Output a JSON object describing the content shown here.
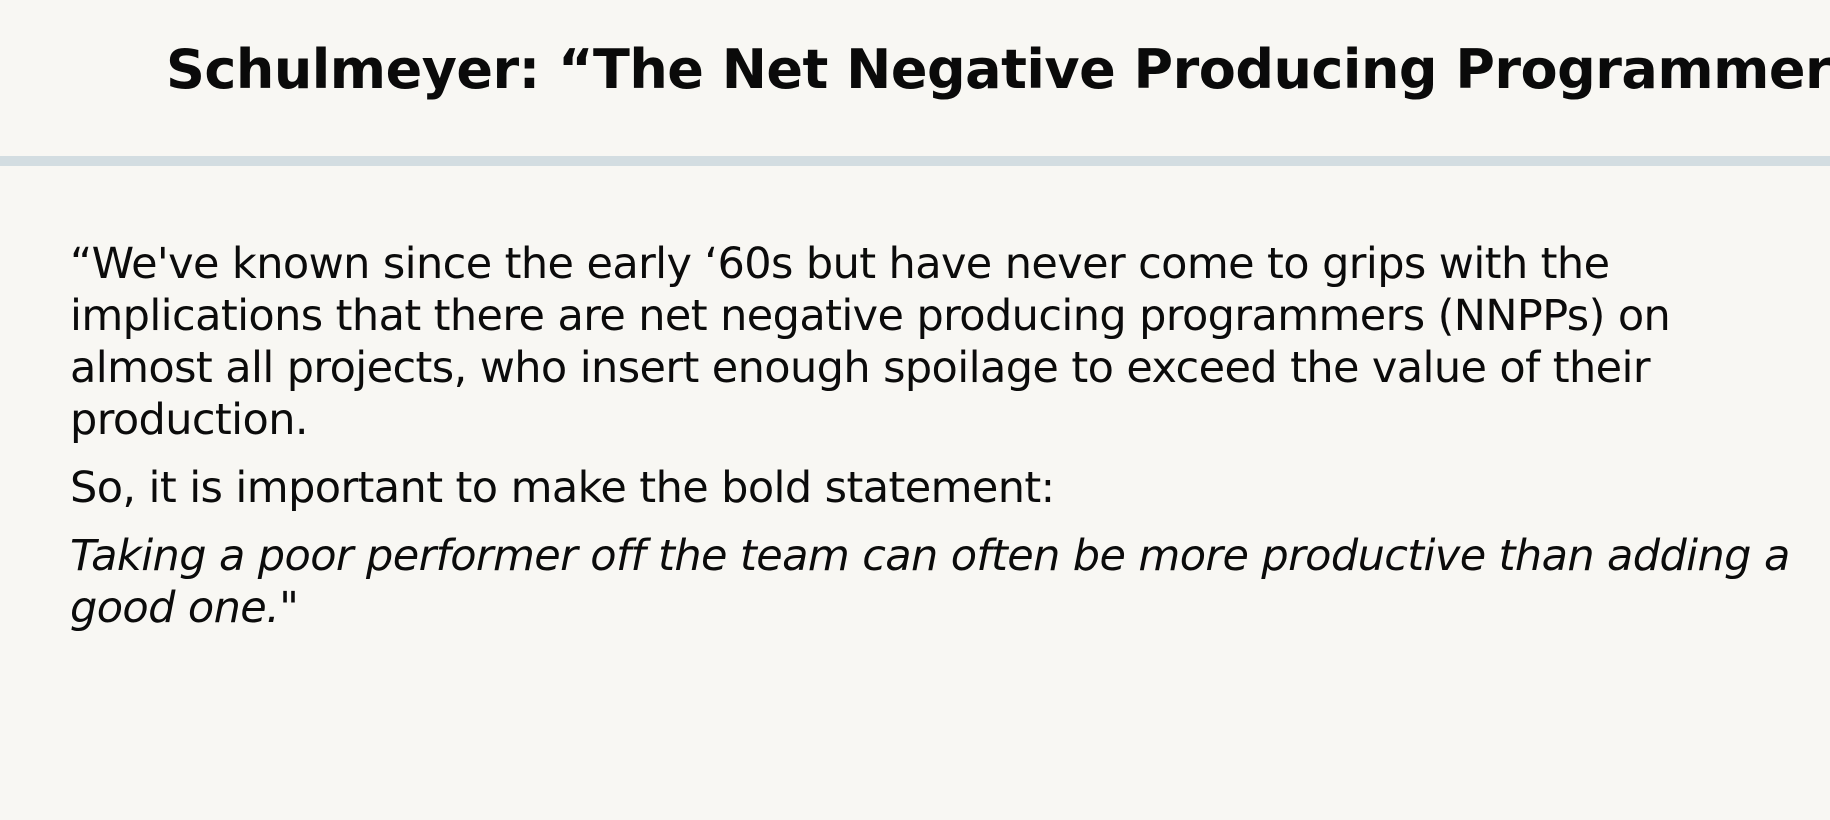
{
  "slide": {
    "title": "Schulmeyer: “The Net Negative Producing Programmer”",
    "paragraphs": [
      "“We've known since the early ‘60s but have never come to grips with the implications that there are net negative producing programmers (NNPPs) on almost all projects, who insert enough spoilage to exceed the value of their production.",
      "So, it is important to make the bold statement:",
      "Taking a poor performer off the team can often be more productive than adding a good one.\""
    ]
  },
  "colors": {
    "background": "#f8f7f3",
    "divider": "#d3dde1",
    "text": "#0b0b0b"
  }
}
